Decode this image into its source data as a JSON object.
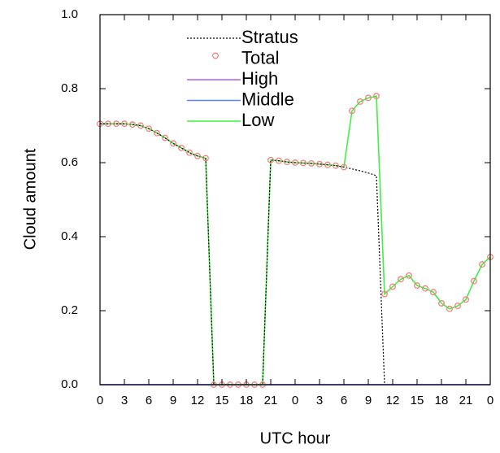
{
  "chart_data": {
    "type": "line",
    "xlabel": "UTC hour",
    "ylabel": "Cloud amount",
    "x": [
      0,
      1,
      2,
      3,
      4,
      5,
      6,
      7,
      8,
      9,
      10,
      11,
      12,
      13,
      14,
      15,
      16,
      17,
      18,
      19,
      20,
      21,
      22,
      23,
      24,
      25,
      26,
      27,
      28,
      29,
      30,
      31,
      32,
      33,
      34,
      35,
      36,
      37,
      38,
      39,
      40,
      41,
      42,
      43,
      44,
      45,
      46,
      47,
      48
    ],
    "series": [
      {
        "name": "Stratus",
        "color": "#000000",
        "style": "dashed",
        "values": [
          0.705,
          0.705,
          0.705,
          0.705,
          0.703,
          0.7,
          0.692,
          0.68,
          0.667,
          0.652,
          0.64,
          0.627,
          0.618,
          0.612,
          0,
          0,
          0,
          0,
          0,
          0,
          0,
          0.607,
          0.605,
          0.602,
          0.6,
          0.599,
          0.598,
          0.596,
          0.594,
          0.592,
          0.588,
          0.583,
          0.578,
          0.572,
          0.565,
          0,
          null,
          null,
          null,
          null,
          null,
          null,
          null,
          null,
          null,
          null,
          null,
          null,
          null
        ]
      },
      {
        "name": "Total",
        "color": "#f08080",
        "style": "markers",
        "values": [
          0.705,
          0.705,
          0.705,
          0.705,
          0.703,
          0.7,
          0.692,
          0.68,
          0.667,
          0.652,
          0.64,
          0.627,
          0.618,
          0.612,
          0,
          0,
          0,
          0,
          0,
          0,
          0,
          0.607,
          0.605,
          0.602,
          0.6,
          0.599,
          0.598,
          0.596,
          0.594,
          0.592,
          0.588,
          0.74,
          0.765,
          0.775,
          0.78,
          0.245,
          0.265,
          0.285,
          0.295,
          0.268,
          0.26,
          0.25,
          0.22,
          0.205,
          0.213,
          0.23,
          0.28,
          0.325,
          0.345
        ]
      },
      {
        "name": "High",
        "color": "#b060f0",
        "style": "line",
        "values": [
          0,
          0,
          0,
          0,
          0,
          0,
          0,
          0,
          0,
          0,
          0,
          0,
          0,
          0,
          0,
          0,
          0,
          0,
          0,
          0,
          0,
          0,
          0,
          0,
          0,
          0,
          0,
          0,
          0,
          0,
          0,
          0,
          0,
          0,
          0,
          0,
          0,
          0,
          0,
          0,
          0,
          0,
          0,
          0,
          0,
          0,
          0,
          0,
          0
        ]
      },
      {
        "name": "Middle",
        "color": "#6080ff",
        "style": "line",
        "values": [
          0,
          0,
          0,
          0,
          0,
          0,
          0,
          0,
          0,
          0,
          0,
          0,
          0,
          0,
          0,
          0,
          0,
          0,
          0,
          0,
          0,
          0,
          0,
          0,
          0,
          0,
          0,
          0,
          0,
          0,
          0,
          0,
          0,
          0,
          0,
          0,
          0,
          0,
          0,
          0,
          0,
          0,
          0,
          0,
          0,
          0,
          0,
          0,
          0
        ]
      },
      {
        "name": "Low",
        "color": "#40f040",
        "style": "line",
        "values": [
          0.705,
          0.705,
          0.705,
          0.705,
          0.703,
          0.7,
          0.692,
          0.68,
          0.667,
          0.652,
          0.64,
          0.627,
          0.618,
          0.612,
          0,
          0,
          0,
          0,
          0,
          0,
          0,
          0.607,
          0.605,
          0.602,
          0.6,
          0.599,
          0.598,
          0.596,
          0.594,
          0.592,
          0.588,
          0.74,
          0.765,
          0.775,
          0.78,
          0.245,
          0.265,
          0.285,
          0.295,
          0.268,
          0.26,
          0.25,
          0.22,
          0.205,
          0.213,
          0.23,
          0.28,
          0.325,
          0.345
        ]
      }
    ],
    "xlim": [
      0,
      48
    ],
    "xticks": [
      0,
      3,
      6,
      9,
      12,
      15,
      18,
      21,
      {
        "value": 24,
        "label": "0"
      },
      {
        "value": 27,
        "label": "3"
      },
      {
        "value": 30,
        "label": "6"
      },
      {
        "value": 33,
        "label": "9"
      },
      {
        "value": 36,
        "label": "12"
      },
      {
        "value": 39,
        "label": "15"
      },
      {
        "value": 42,
        "label": "18"
      },
      {
        "value": 45,
        "label": "21"
      },
      {
        "value": 48,
        "label": "0"
      }
    ],
    "ylim": [
      0,
      1
    ],
    "yticks": [
      {
        "value": 0,
        "label": "0.0"
      },
      {
        "value": 0.2,
        "label": "0.2"
      },
      {
        "value": 0.4,
        "label": "0.4"
      },
      {
        "value": 0.6,
        "label": "0.6"
      },
      {
        "value": 0.8,
        "label": "0.8"
      },
      {
        "value": 1,
        "label": "1.0"
      }
    ],
    "grid": false
  }
}
